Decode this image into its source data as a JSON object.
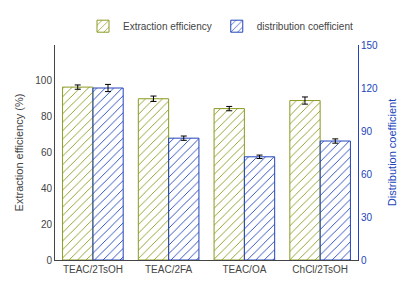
{
  "chart_data": {
    "type": "bar",
    "categories": [
      "TEAC/2TsOH",
      "TEAC/2FA",
      "TEAC/OA",
      "ChCl/2TsOH"
    ],
    "series": [
      {
        "name": "Extraction efficiency",
        "color": "#c8d46a",
        "values": [
          96.5,
          90.0,
          84.5,
          89.0
        ],
        "errors": [
          1.2,
          1.5,
          1.2,
          2.0
        ]
      },
      {
        "name": "distribution coefficient",
        "color": "#2244bb",
        "axis": "y2",
        "values": [
          120.0,
          85.0,
          72.0,
          83.0
        ],
        "errors": [
          2.5,
          1.5,
          1.2,
          1.5
        ]
      }
    ],
    "ylabel": "Extraction efficiency (%)",
    "y2label": "Distribution coefficient",
    "ylim": [
      0,
      120
    ],
    "yticks": [
      0,
      20,
      40,
      60,
      80,
      100
    ],
    "y2lim": [
      0,
      150
    ],
    "y2ticks": [
      0,
      30,
      60,
      90,
      120,
      150
    ],
    "grid": false,
    "legend": "upper right"
  }
}
